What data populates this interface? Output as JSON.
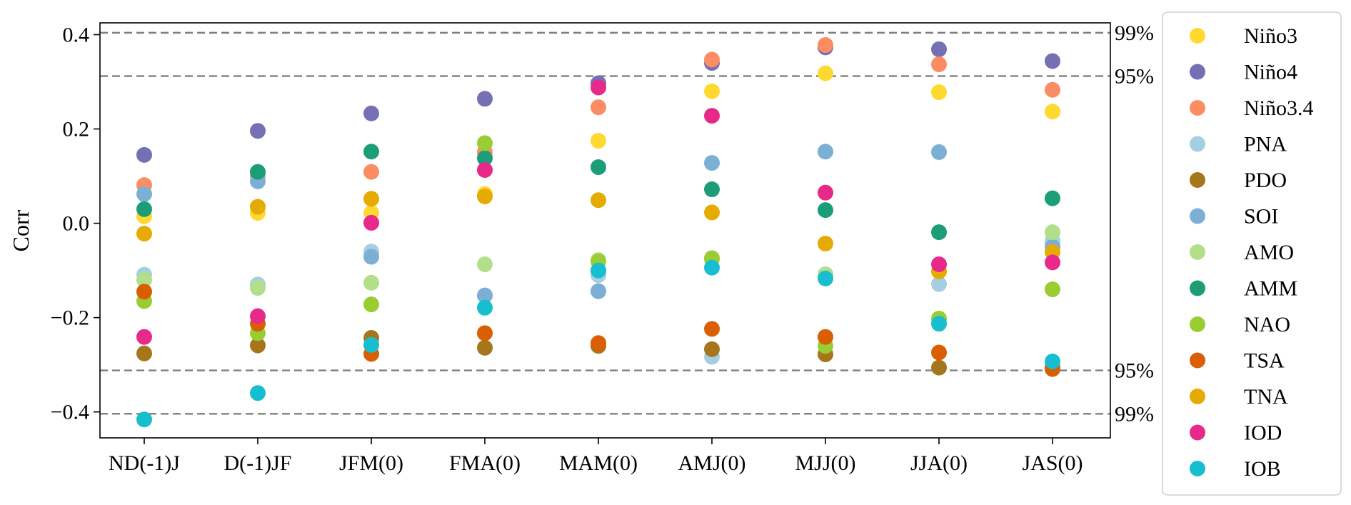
{
  "chart_data": {
    "type": "scatter",
    "title": "",
    "xlabel": "",
    "ylabel": "Corr",
    "ylim": [
      -0.455,
      0.425
    ],
    "yticks": [
      0.4,
      0.2,
      0.0,
      -0.2,
      -0.4
    ],
    "yticklabels": [
      "0.4",
      "0.2",
      "0.0",
      "−0.2",
      "−0.4"
    ],
    "categories": [
      "ND(-1)J",
      "D(-1)JF",
      "JFM(0)",
      "FMA(0)",
      "MAM(0)",
      "AMJ(0)",
      "MJJ(0)",
      "JJA(0)",
      "JAS(0)"
    ],
    "grid": false,
    "legend_position": "outside-right",
    "reference_lines": [
      {
        "value": 0.404,
        "label": "99%"
      },
      {
        "value": 0.312,
        "label": "95%"
      },
      {
        "value": -0.312,
        "label": "95%"
      },
      {
        "value": -0.404,
        "label": "99%"
      }
    ],
    "series": [
      {
        "name": "Niño3",
        "color": "#ffd92f",
        "values": [
          0.015,
          0.022,
          0.022,
          0.062,
          0.175,
          0.28,
          0.318,
          0.278,
          0.237
        ]
      },
      {
        "name": "Niño4",
        "color": "#7570b3",
        "values": [
          0.145,
          0.196,
          0.233,
          0.264,
          0.297,
          0.34,
          0.373,
          0.369,
          0.344
        ]
      },
      {
        "name": "Niño3.4",
        "color": "#fc8d62",
        "values": [
          0.081,
          0.101,
          0.109,
          0.151,
          0.246,
          0.347,
          0.378,
          0.337,
          0.283
        ]
      },
      {
        "name": "PNA",
        "color": "#a6cee3",
        "values": [
          -0.109,
          -0.13,
          -0.06,
          -0.153,
          -0.11,
          -0.283,
          -0.108,
          -0.129,
          -0.038
        ]
      },
      {
        "name": "PDO",
        "color": "#a6761d",
        "values": [
          -0.276,
          -0.259,
          -0.243,
          -0.264,
          -0.26,
          -0.267,
          -0.278,
          -0.306,
          -0.305
        ]
      },
      {
        "name": "SOI",
        "color": "#7bafd4",
        "values": [
          0.062,
          0.089,
          -0.071,
          -0.153,
          -0.144,
          0.128,
          0.152,
          0.151,
          -0.05
        ]
      },
      {
        "name": "AMO",
        "color": "#b2df8a",
        "values": [
          -0.12,
          -0.137,
          -0.126,
          -0.087,
          -0.078,
          -0.077,
          -0.109,
          -0.204,
          -0.019
        ]
      },
      {
        "name": "AMM",
        "color": "#1b9e77",
        "values": [
          0.03,
          0.109,
          0.152,
          0.138,
          0.119,
          0.072,
          0.028,
          -0.019,
          0.053
        ]
      },
      {
        "name": "NAO",
        "color": "#9acd32",
        "values": [
          -0.165,
          -0.233,
          -0.172,
          0.17,
          -0.081,
          -0.074,
          -0.26,
          -0.202,
          -0.14
        ]
      },
      {
        "name": "TSA",
        "color": "#d95f02",
        "values": [
          -0.145,
          -0.213,
          -0.277,
          -0.233,
          -0.254,
          -0.224,
          -0.241,
          -0.274,
          -0.309
        ]
      },
      {
        "name": "TNA",
        "color": "#e6ab02",
        "values": [
          -0.022,
          0.035,
          0.052,
          0.057,
          0.049,
          0.023,
          -0.043,
          -0.102,
          -0.061
        ]
      },
      {
        "name": "IOD",
        "color": "#e7298a",
        "values": [
          -0.241,
          -0.197,
          0.001,
          0.113,
          0.288,
          0.228,
          0.065,
          -0.087,
          -0.083
        ]
      },
      {
        "name": "IOB",
        "color": "#17becf",
        "values": [
          -0.416,
          -0.36,
          -0.258,
          -0.179,
          -0.1,
          -0.094,
          -0.117,
          -0.213,
          -0.293
        ]
      }
    ]
  }
}
